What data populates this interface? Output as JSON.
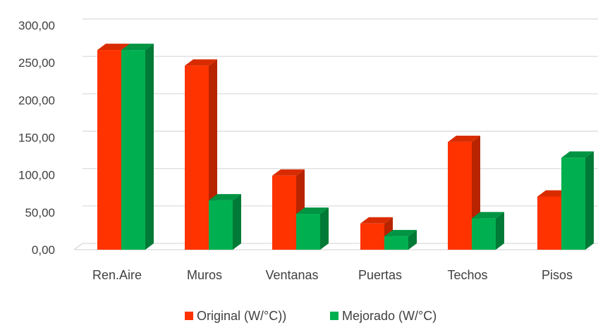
{
  "chart_data": {
    "type": "bar",
    "categories": [
      "Ren.Aire",
      "Muros",
      "Ventanas",
      "Puertas",
      "Techos",
      "Pisos"
    ],
    "series": [
      {
        "name": "Original (W/°C))",
        "values": [
          267,
          246,
          99,
          35,
          144,
          71
        ]
      },
      {
        "name": "Mejorado (W/°C)",
        "values": [
          267,
          66,
          48,
          18,
          42,
          123
        ]
      }
    ],
    "y_tick_labels": [
      "0,00",
      "50,00",
      "100,00",
      "150,00",
      "200,00",
      "250,00",
      "300,00"
    ],
    "y_ticks": [
      0,
      50,
      100,
      150,
      200,
      250,
      300
    ],
    "ylim": [
      0,
      300
    ],
    "grid": true,
    "legend_position": "bottom",
    "style": "3d-clustered-column"
  },
  "colors": {
    "original_front": "#ff3300",
    "original_side": "#b82400",
    "original_top": "#d92b00",
    "mejorado_front": "#00b050",
    "mejorado_side": "#007a36",
    "mejorado_top": "#009443",
    "grid": "#d9d9d9",
    "text": "#404040"
  }
}
